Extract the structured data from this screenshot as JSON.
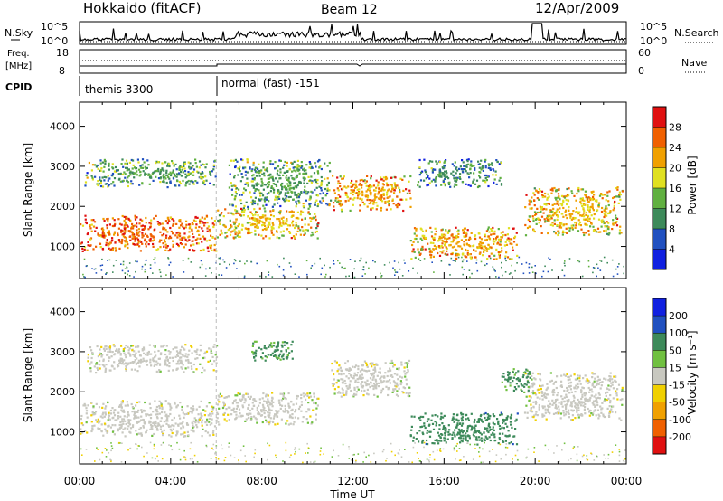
{
  "header": {
    "station": "Hokkaido (fitACF)",
    "beam": "Beam 12",
    "date": "12/Apr/2009"
  },
  "noise_panel": {
    "left_label": "N.Sky",
    "right_label": "N.Search",
    "left_ticks": [
      "10^5",
      "10^0"
    ],
    "right_ticks": [
      "10^5",
      "10^0"
    ]
  },
  "freq_panel": {
    "left_label_1": "Freq.",
    "left_label_2": "[MHz]",
    "right_label": "Nave",
    "left_ticks": [
      "18",
      "8"
    ],
    "right_ticks": [
      "60",
      "0"
    ]
  },
  "cpid_panel": {
    "label": "CPID",
    "segments": [
      {
        "name": "themis 3300",
        "start": 0,
        "end": 6
      },
      {
        "name": "normal (fast) -151",
        "start": 6,
        "end": 24
      }
    ]
  },
  "power_colorbar": {
    "label": "Power [dB]",
    "ticks": [
      "4",
      "8",
      "12",
      "16",
      "20",
      "24",
      "28"
    ],
    "colors": [
      "#1020e0",
      "#2050c0",
      "#3d8a5a",
      "#60b040",
      "#e0e020",
      "#f0a000",
      "#f06000",
      "#e01010"
    ]
  },
  "velocity_colorbar": {
    "label": "Velocity [m s⁻¹]",
    "ticks": [
      "-200",
      "-100",
      "-50",
      "-15",
      "15",
      "50",
      "100",
      "200"
    ],
    "colors": [
      "#e01010",
      "#f06000",
      "#f0a000",
      "#f0d000",
      "#c8c8c0",
      "#70c040",
      "#3d8a5a",
      "#2050c0",
      "#1020e0"
    ]
  },
  "chart_data": [
    {
      "type": "heatmap",
      "title": "Power",
      "xlabel": "Time UT",
      "ylabel": "Slant Range [km]",
      "xlim": [
        0,
        24
      ],
      "ylim": [
        200,
        4600
      ],
      "x_ticks": [
        "00:00",
        "04:00",
        "08:00",
        "12:00",
        "16:00",
        "20:00",
        "00:00"
      ],
      "y_ticks": [
        "1000",
        "2000",
        "3000",
        "4000"
      ],
      "colorbar_label": "Power [dB]",
      "regions": [
        {
          "t0": 0.0,
          "t1": 6.0,
          "r0": 900,
          "r1": 1800,
          "value": 26
        },
        {
          "t0": 0.2,
          "t1": 6.0,
          "r0": 2500,
          "r1": 3200,
          "value": 12
        },
        {
          "t0": 6.0,
          "t1": 10.5,
          "r0": 1200,
          "r1": 2000,
          "value": 20
        },
        {
          "t0": 6.5,
          "t1": 11.0,
          "r0": 2000,
          "r1": 3200,
          "value": 12
        },
        {
          "t0": 11.0,
          "t1": 14.5,
          "r0": 1900,
          "r1": 2800,
          "value": 22
        },
        {
          "t0": 14.5,
          "t1": 19.2,
          "r0": 700,
          "r1": 1500,
          "value": 22
        },
        {
          "t0": 14.8,
          "t1": 18.5,
          "r0": 2500,
          "r1": 3200,
          "value": 10
        },
        {
          "t0": 19.5,
          "t1": 23.8,
          "r0": 1300,
          "r1": 2500,
          "value": 20
        }
      ]
    },
    {
      "type": "heatmap",
      "title": "Velocity",
      "xlabel": "Time UT",
      "ylabel": "Slant Range [km]",
      "xlim": [
        0,
        24
      ],
      "ylim": [
        200,
        4600
      ],
      "x_ticks": [
        "00:00",
        "04:00",
        "08:00",
        "12:00",
        "16:00",
        "20:00",
        "00:00"
      ],
      "y_ticks": [
        "1000",
        "2000",
        "3000",
        "4000"
      ],
      "colorbar_label": "Velocity [m s⁻¹]",
      "regions": [
        {
          "t0": 0.0,
          "t1": 6.0,
          "r0": 900,
          "r1": 1800,
          "value": 0
        },
        {
          "t0": 0.2,
          "t1": 6.0,
          "r0": 2500,
          "r1": 3200,
          "value": 0
        },
        {
          "t0": 6.0,
          "t1": 10.5,
          "r0": 1200,
          "r1": 2000,
          "value": 0
        },
        {
          "t0": 7.5,
          "t1": 9.5,
          "r0": 2800,
          "r1": 3300,
          "value": 60
        },
        {
          "t0": 11.0,
          "t1": 14.5,
          "r0": 1900,
          "r1": 2800,
          "value": 0
        },
        {
          "t0": 14.5,
          "t1": 19.2,
          "r0": 700,
          "r1": 1500,
          "value": 80
        },
        {
          "t0": 19.5,
          "t1": 23.8,
          "r0": 1300,
          "r1": 2500,
          "value": 0
        },
        {
          "t0": 18.5,
          "t1": 19.8,
          "r0": 2000,
          "r1": 2600,
          "value": 60
        }
      ]
    }
  ]
}
